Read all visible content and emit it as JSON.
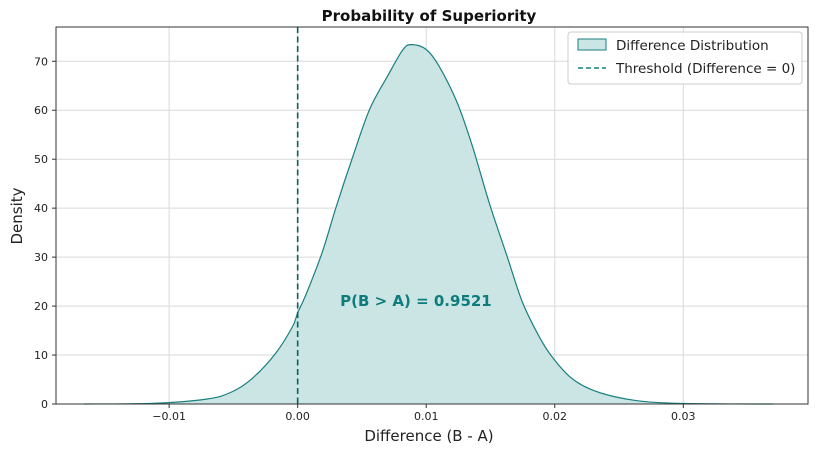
{
  "chart_data": {
    "type": "area",
    "title": "Probability of Superiority",
    "xlabel": "Difference (B - A)",
    "ylabel": "Density",
    "xlim": [
      -0.0188,
      0.0397
    ],
    "ylim": [
      0,
      77
    ],
    "grid": true,
    "x_ticks": [
      -0.01,
      0.0,
      0.01,
      0.02,
      0.03
    ],
    "x_tick_labels": [
      "−0.01",
      "0.00",
      "0.01",
      "0.02",
      "0.03"
    ],
    "y_ticks": [
      0,
      10,
      20,
      30,
      40,
      50,
      60,
      70
    ],
    "y_tick_labels": [
      "0",
      "10",
      "20",
      "30",
      "40",
      "50",
      "60",
      "70"
    ],
    "legend_position": "top-right",
    "series": [
      {
        "name": "Difference Distribution",
        "kind": "kde-fill",
        "color": "#1a7f7f",
        "fill": "#cbe5e5",
        "x": [
          -0.0166,
          -0.0115,
          -0.0071,
          -0.0051,
          -0.0035,
          -0.0017,
          -0.0004,
          0.0,
          0.0007,
          0.0019,
          0.003,
          0.0043,
          0.0056,
          0.007,
          0.0082,
          0.0089,
          0.01,
          0.011,
          0.0124,
          0.0136,
          0.0149,
          0.0163,
          0.0175,
          0.0188,
          0.0198,
          0.0212,
          0.0227,
          0.0248,
          0.0274,
          0.0313,
          0.037
        ],
        "y": [
          0,
          0.1,
          1.0,
          2.5,
          5.3,
          10.4,
          15.8,
          18.6,
          22.7,
          30.9,
          40.3,
          50.6,
          60.2,
          67.0,
          72.4,
          73.4,
          72.4,
          69.0,
          61.6,
          52.6,
          41.1,
          30.1,
          20.7,
          13.7,
          9.6,
          5.5,
          3.1,
          1.4,
          0.4,
          0.05,
          0
        ]
      },
      {
        "name": "Threshold (Difference = 0)",
        "kind": "vline",
        "x": 0,
        "color": "#0b5f5f"
      }
    ],
    "annotation": {
      "text": "P(B > A) = 0.9521",
      "x": 0.0092,
      "y": 21,
      "color": "#0e7c7c"
    }
  }
}
